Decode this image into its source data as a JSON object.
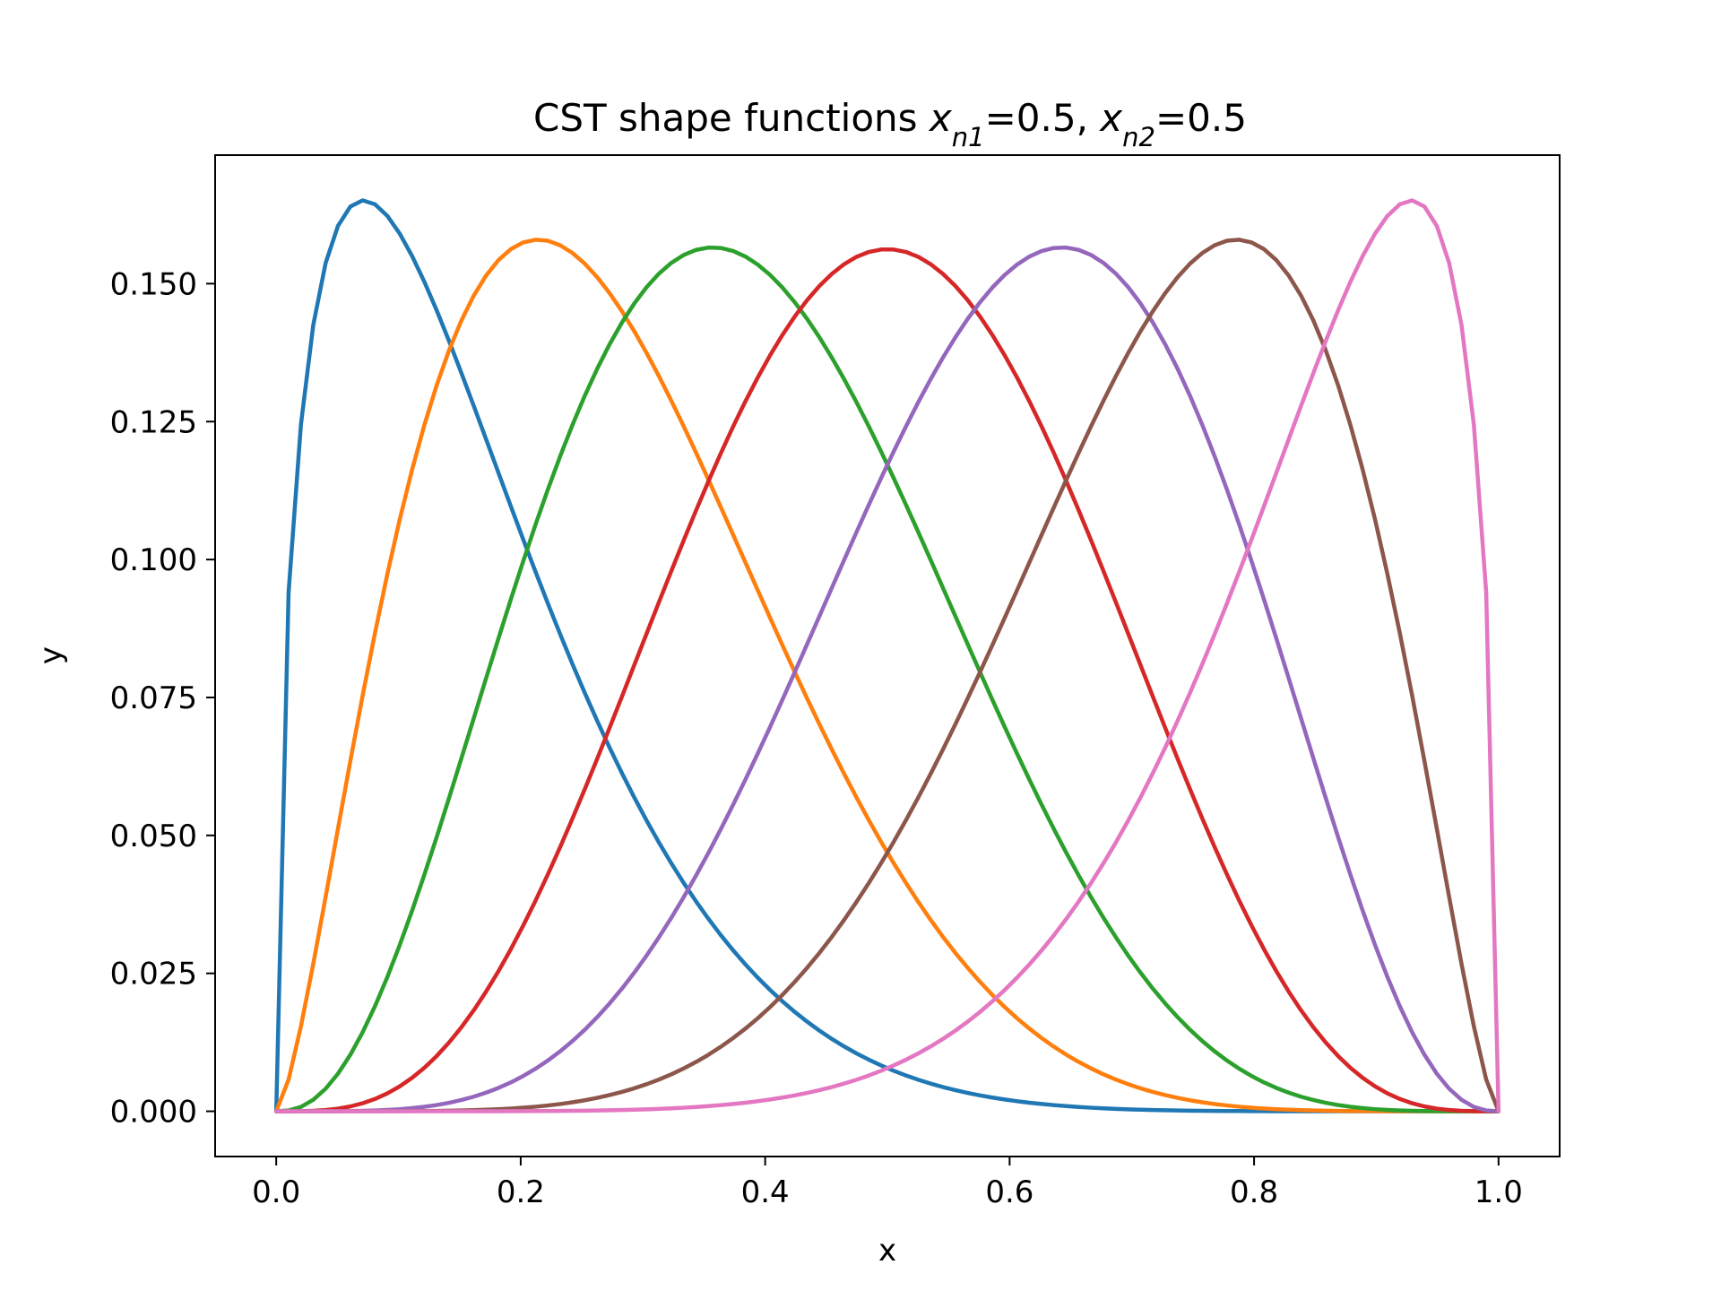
{
  "chart_data": {
    "type": "line",
    "title": {
      "prefix": "CST shape functions ",
      "var1": "x",
      "sub1": "n1",
      "eq1": "=0.5, ",
      "var2": "x",
      "sub2": "n2",
      "eq2": "=0.5"
    },
    "xlabel": "x",
    "ylabel": "y",
    "xlim": [
      -0.05,
      1.05
    ],
    "ylim": [
      -0.0082,
      0.1733
    ],
    "grid": false,
    "x_ticks": [
      0.0,
      0.2,
      0.4,
      0.6,
      0.8,
      1.0
    ],
    "x_tick_labels": [
      "0.0",
      "0.2",
      "0.4",
      "0.6",
      "0.8",
      "1.0"
    ],
    "y_ticks": [
      0.0,
      0.025,
      0.05,
      0.075,
      0.1,
      0.125,
      0.15
    ],
    "y_tick_labels": [
      "0.000",
      "0.025",
      "0.050",
      "0.075",
      "0.100",
      "0.125",
      "0.150"
    ],
    "function": {
      "form": "class_function_times_bernstein",
      "n1": 0.5,
      "n2": 0.5,
      "order": 6,
      "x_range": [
        0,
        1
      ],
      "samples": 100
    },
    "series": [
      {
        "index": 0,
        "color": "#1f77b4"
      },
      {
        "index": 1,
        "color": "#ff7f0e"
      },
      {
        "index": 2,
        "color": "#2ca02c"
      },
      {
        "index": 3,
        "color": "#d62728"
      },
      {
        "index": 4,
        "color": "#9467bd"
      },
      {
        "index": 5,
        "color": "#8c564b"
      },
      {
        "index": 6,
        "color": "#e377c2"
      }
    ]
  }
}
